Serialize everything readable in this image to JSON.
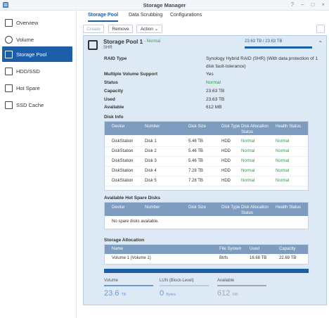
{
  "window": {
    "title": "Storage Manager",
    "controls": [
      "?",
      "–",
      "□",
      "×"
    ]
  },
  "sidebar": {
    "items": [
      {
        "label": "Overview",
        "icon": "overview-icon"
      },
      {
        "label": "Volume",
        "icon": "volume-icon"
      },
      {
        "label": "Storage Pool",
        "icon": "storage-pool-icon",
        "active": true
      },
      {
        "label": "HDD/SSD",
        "icon": "hdd-icon"
      },
      {
        "label": "Hot Spare",
        "icon": "hot-spare-icon"
      },
      {
        "label": "SSD Cache",
        "icon": "ssd-cache-icon"
      }
    ]
  },
  "tabs": [
    "Storage Pool",
    "Data Scrubbing",
    "Configurations"
  ],
  "toolbar": {
    "create": "Create",
    "remove": "Remove",
    "action": "Action ⌄"
  },
  "pool": {
    "title": "Storage Pool 1",
    "status": "- Normal",
    "type": "SHR",
    "usage_text": "23.63 TB / 23.63 TB",
    "usage_fraction": 1.0,
    "properties": [
      {
        "label": "RAID Type",
        "value": "Synology Hybrid RAID (SHR) (With data protection of 1 disk fault-tolerance)"
      },
      {
        "label": "Multiple Volume Support",
        "value": "Yes"
      },
      {
        "label": "Status",
        "value": "Normal",
        "status": "ok"
      },
      {
        "label": "Capacity",
        "value": "23.63 TB"
      },
      {
        "label": "Used",
        "value": "23.63 TB"
      },
      {
        "label": "Available",
        "value": "612 MB"
      }
    ]
  },
  "disk_info": {
    "title": "Disk Info",
    "headers": [
      "Device",
      "Number",
      "Disk Size",
      "Disk Type",
      "Disk Allocation Status",
      "Health Status"
    ],
    "rows": [
      [
        "DiskStation",
        "Disk 1",
        "5.46 TB",
        "HDD",
        "Normal",
        "Normal"
      ],
      [
        "DiskStation",
        "Disk 2",
        "5.46 TB",
        "HDD",
        "Normal",
        "Normal"
      ],
      [
        "DiskStation",
        "Disk 3",
        "5.46 TB",
        "HDD",
        "Normal",
        "Normal"
      ],
      [
        "DiskStation",
        "Disk 4",
        "7.28 TB",
        "HDD",
        "Normal",
        "Normal"
      ],
      [
        "DiskStation",
        "Disk 5",
        "7.28 TB",
        "HDD",
        "Normal",
        "Normal"
      ]
    ]
  },
  "hot_spare": {
    "title": "Available Hot Spare Disks",
    "headers": [
      "Device",
      "Number",
      "Disk Size",
      "Disk Type",
      "Disk Allocation Status",
      "Health Status"
    ],
    "empty": "No spare disks available."
  },
  "allocation": {
    "title": "Storage Allocation",
    "headers": [
      "Name",
      "File System",
      "Used",
      "Capacity"
    ],
    "rows": [
      [
        "Volume 1 (Volume 1)",
        "Btrfs",
        "16.68 TB",
        "22.69 TB"
      ]
    ]
  },
  "summary": [
    {
      "label": "Volume",
      "value": "23.6",
      "unit": "TB"
    },
    {
      "label": "LUN (Block-Level)",
      "value": "0",
      "unit": "Bytes"
    },
    {
      "label": "Available",
      "value": "612",
      "unit": "MB"
    }
  ]
}
